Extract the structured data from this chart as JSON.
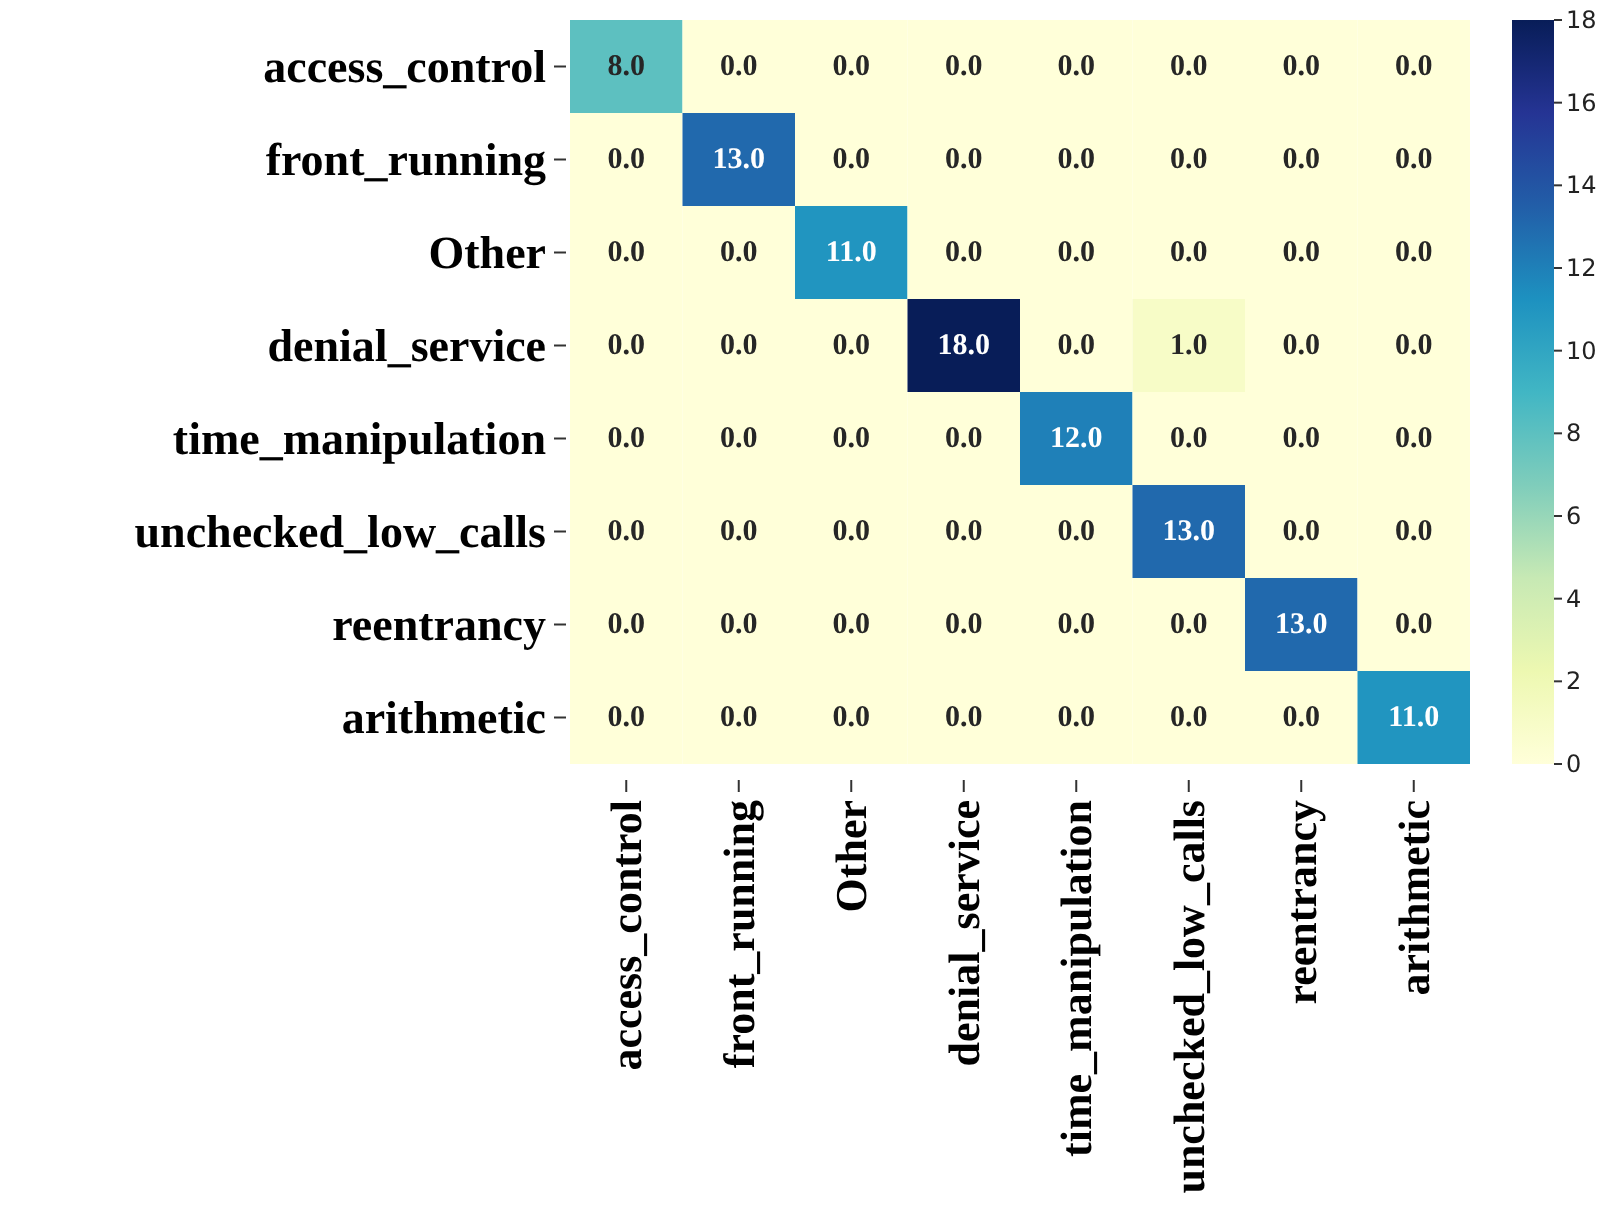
{
  "chart_data": {
    "type": "heatmap",
    "categories": [
      "access_control",
      "front_running",
      "Other",
      "denial_service",
      "time_manipulation",
      "unchecked_low_calls",
      "reentrancy",
      "arithmetic"
    ],
    "y_categories": [
      "access_control",
      "front_running",
      "Other",
      "denial_service",
      "time_manipulation",
      "unchecked_low_calls",
      "reentrancy",
      "arithmetic"
    ],
    "cells": [
      [
        8,
        0,
        0,
        0,
        0,
        0,
        0,
        0
      ],
      [
        0,
        13,
        0,
        0,
        0,
        0,
        0,
        0
      ],
      [
        0,
        0,
        11,
        0,
        0,
        0,
        0,
        0
      ],
      [
        0,
        0,
        0,
        18,
        0,
        1,
        0,
        0
      ],
      [
        0,
        0,
        0,
        0,
        12,
        0,
        0,
        0
      ],
      [
        0,
        0,
        0,
        0,
        0,
        13,
        0,
        0
      ],
      [
        0,
        0,
        0,
        0,
        0,
        0,
        13,
        0
      ],
      [
        0,
        0,
        0,
        0,
        0,
        0,
        0,
        11
      ]
    ],
    "cell_labels": [
      [
        "8.0",
        "0.0",
        "0.0",
        "0.0",
        "0.0",
        "0.0",
        "0.0",
        "0.0"
      ],
      [
        "0.0",
        "13.0",
        "0.0",
        "0.0",
        "0.0",
        "0.0",
        "0.0",
        "0.0"
      ],
      [
        "0.0",
        "0.0",
        "11.0",
        "0.0",
        "0.0",
        "0.0",
        "0.0",
        "0.0"
      ],
      [
        "0.0",
        "0.0",
        "0.0",
        "18.0",
        "0.0",
        "1.0",
        "0.0",
        "0.0"
      ],
      [
        "0.0",
        "0.0",
        "0.0",
        "0.0",
        "12.0",
        "0.0",
        "0.0",
        "0.0"
      ],
      [
        "0.0",
        "0.0",
        "0.0",
        "0.0",
        "0.0",
        "13.0",
        "0.0",
        "0.0"
      ],
      [
        "0.0",
        "0.0",
        "0.0",
        "0.0",
        "0.0",
        "0.0",
        "13.0",
        "0.0"
      ],
      [
        "0.0",
        "0.0",
        "0.0",
        "0.0",
        "0.0",
        "0.0",
        "0.0",
        "11.0"
      ]
    ],
    "clim": [
      0,
      18
    ],
    "cticks": [
      0,
      2,
      4,
      6,
      8,
      10,
      12,
      14,
      16,
      18
    ]
  }
}
